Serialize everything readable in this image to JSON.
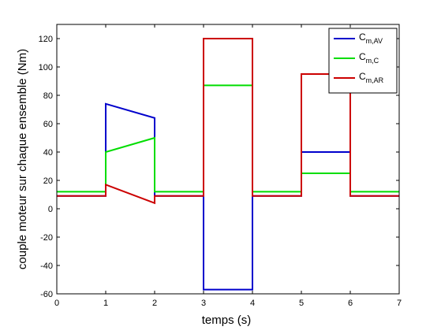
{
  "chart_data": {
    "type": "line",
    "title": "",
    "xlabel": "temps (s)",
    "ylabel": "couple moteur sur chaque ensemble (Nm)",
    "xlim": [
      0,
      7
    ],
    "ylim": [
      -60,
      130
    ],
    "xticks": [
      0,
      1,
      2,
      3,
      4,
      5,
      6,
      7
    ],
    "yticks": [
      -60,
      -40,
      -20,
      0,
      20,
      40,
      60,
      80,
      100,
      120
    ],
    "grid": false,
    "legend_position": "top-right",
    "series": [
      {
        "name": "C_m,AV",
        "name_main": "C",
        "name_sub": "m,AV",
        "color": "#0000cc",
        "x": [
          0,
          1,
          1,
          2,
          2,
          3,
          3,
          4,
          4,
          5,
          5,
          6,
          6,
          7
        ],
        "y": [
          9,
          9,
          74,
          64,
          9,
          9,
          -57,
          -57,
          9,
          9,
          40,
          40,
          9,
          9
        ]
      },
      {
        "name": "C_m,C",
        "name_main": "C",
        "name_sub": "m,C",
        "color": "#00dd00",
        "x": [
          0,
          1,
          1,
          2,
          2,
          3,
          3,
          4,
          4,
          5,
          5,
          6,
          6,
          7
        ],
        "y": [
          12,
          12,
          40,
          50,
          12,
          12,
          87,
          87,
          12,
          12,
          25,
          25,
          12,
          12
        ]
      },
      {
        "name": "C_m,AR",
        "name_main": "C",
        "name_sub": "m,AR",
        "color": "#cc0000",
        "x": [
          0,
          1,
          1,
          2,
          2,
          3,
          3,
          4,
          4,
          5,
          5,
          6,
          6,
          7
        ],
        "y": [
          9,
          9,
          17,
          4,
          9,
          9,
          120,
          120,
          9,
          9,
          95,
          95,
          9,
          9
        ]
      }
    ]
  }
}
